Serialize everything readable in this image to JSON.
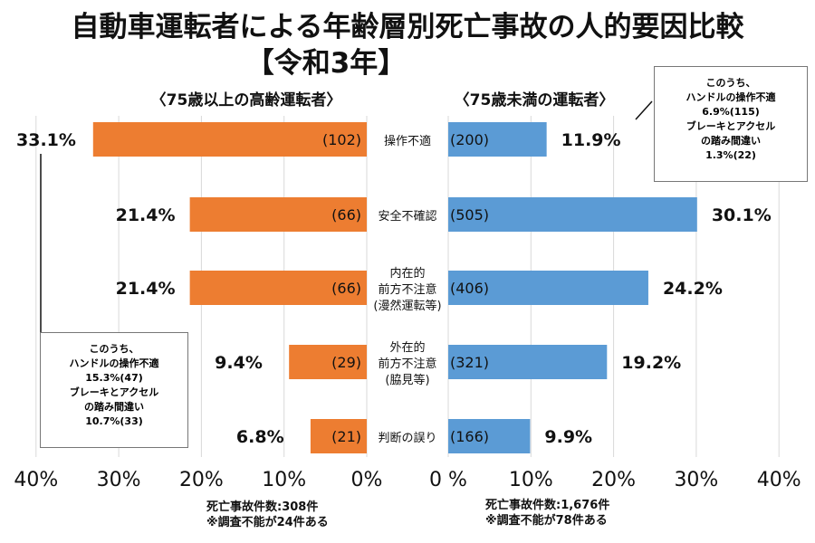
{
  "chart_data": {
    "type": "bar",
    "title": "自動車運転者による年齢層別死亡事故の人的要因比較",
    "subtitle": "【令和3年】",
    "categories": [
      [
        "操作不適"
      ],
      [
        "安全不確認"
      ],
      [
        "内在的",
        "前方不注意",
        "(漫然運転等)"
      ],
      [
        "外在的",
        "前方不注意",
        "(脇見等)"
      ],
      [
        "判断の誤り"
      ]
    ],
    "series": [
      {
        "name": "〈75歳以上の高齢運転者〉",
        "color": "#ed7d31",
        "direction": "left",
        "values": [
          33.1,
          21.4,
          21.4,
          9.4,
          6.8
        ],
        "counts": [
          "(102)",
          "(66)",
          "(66)",
          "(29)",
          "(21)"
        ],
        "labels": [
          "33.1%",
          "21.4%",
          "21.4%",
          "9.4%",
          "6.8%"
        ]
      },
      {
        "name": "〈75歳未満の運転者〉",
        "color": "#5b9bd5",
        "direction": "right",
        "values": [
          11.9,
          30.1,
          24.2,
          19.2,
          9.9
        ],
        "counts": [
          "(200)",
          "(505)",
          "(406)",
          "(321)",
          "(166)"
        ],
        "labels": [
          "11.9%",
          "30.1%",
          "24.2%",
          "19.2%",
          "9.9%"
        ]
      }
    ],
    "xlim": [
      0,
      40
    ],
    "left_ticks": [
      "40%",
      "30%",
      "20%",
      "10%",
      "0%"
    ],
    "right_ticks": [
      "0 %",
      "10%",
      "20%",
      "30%",
      "40%"
    ],
    "grid": true,
    "annotations": {
      "left_box": [
        "このうち、",
        "ハンドルの操作不適",
        "15.3%(47)",
        "ブレーキとアクセル",
        "の踏み間違い",
        "10.7%(33)"
      ],
      "right_box": [
        "このうち、",
        "ハンドルの操作不適",
        "6.9%(115)",
        "ブレーキとアクセル",
        "の踏み間違い",
        "1.3%(22)"
      ],
      "left_note": [
        "死亡事故件数:308件",
        "※調査不能が24件ある"
      ],
      "right_note": [
        "死亡事故件数:1,676件",
        "※調査不能が78件ある"
      ]
    }
  }
}
